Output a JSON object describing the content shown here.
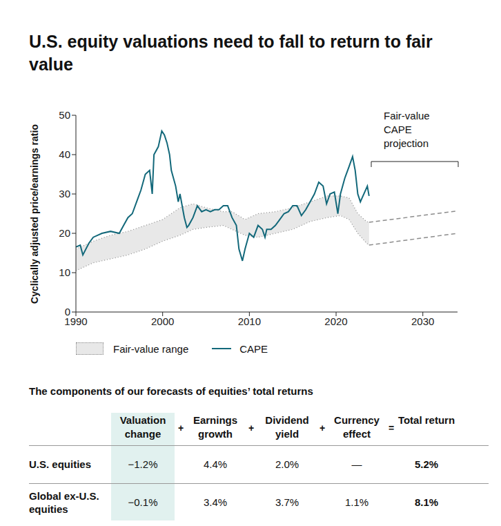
{
  "title": "U.S. equity valuations need to fall to return to fair value",
  "chart_data": {
    "type": "line",
    "y_label": "Cyclically adjusted price/earnings ratio",
    "xlim": [
      1990,
      2034
    ],
    "xticks": [
      1990,
      2000,
      2010,
      2020,
      2030
    ],
    "ylim": [
      0,
      50
    ],
    "yticks": [
      0,
      10,
      20,
      30,
      40,
      50
    ],
    "grid": false,
    "series": [
      {
        "name": "Fair-value range",
        "type": "range",
        "color": "#e8e8e8",
        "line_style": "dotted",
        "x": [
          1990,
          1992,
          1994,
          1996,
          1998,
          2000,
          2002,
          2003.5,
          2005,
          2007,
          2008,
          2009.5,
          2011,
          2013,
          2015,
          2017,
          2019,
          2020.5,
          2021.5,
          2022.5,
          2023.5,
          2023.8
        ],
        "lower": [
          10.5,
          12.5,
          13.5,
          14.5,
          16,
          18,
          19.5,
          21,
          21.5,
          22,
          21,
          19.5,
          19,
          20,
          21,
          23,
          24,
          24.5,
          23.5,
          20,
          17.5,
          17
        ],
        "upper": [
          16,
          18,
          19.5,
          20.5,
          22,
          23.5,
          26.5,
          27.5,
          26.5,
          25.5,
          25.5,
          23.5,
          25,
          25.5,
          26.5,
          28,
          29.5,
          29.5,
          29,
          25,
          23,
          22.8
        ]
      },
      {
        "name": "CAPE",
        "type": "line",
        "color": "#12687a",
        "x": [
          1990,
          1990.5,
          1990.8,
          1991.5,
          1992,
          1993,
          1994,
          1995,
          1995.5,
          1996,
          1996.5,
          1997,
          1997.5,
          1998,
          1998.5,
          1998.8,
          1999,
          1999.5,
          1999.9,
          2000.2,
          2000.5,
          2000.8,
          2001,
          2001.5,
          2001.8,
          2002,
          2002.5,
          2002.8,
          2003,
          2003.5,
          2004,
          2004.5,
          2005,
          2005.5,
          2006,
          2006.5,
          2007,
          2007.5,
          2008,
          2008.5,
          2008.8,
          2009.2,
          2009.5,
          2010,
          2010.5,
          2011,
          2011.5,
          2011.8,
          2012,
          2012.5,
          2013,
          2013.5,
          2014,
          2014.5,
          2015,
          2015.5,
          2016,
          2016.5,
          2017,
          2017.5,
          2018,
          2018.5,
          2018.9,
          2019.3,
          2019.8,
          2020.2,
          2020.5,
          2021,
          2021.5,
          2021.9,
          2022.2,
          2022.5,
          2022.8,
          2023,
          2023.4,
          2023.6,
          2023.8
        ],
        "values": [
          16.5,
          17,
          14.5,
          17.5,
          19,
          20,
          20.5,
          20,
          22,
          24,
          25,
          28,
          31,
          35,
          36,
          30,
          40,
          42,
          46,
          45,
          43,
          40,
          36,
          32,
          28,
          30,
          24,
          21.5,
          22,
          24,
          27,
          25.5,
          26,
          25.5,
          26,
          26,
          27,
          27,
          24,
          22,
          16,
          13,
          16,
          20,
          19,
          22,
          21,
          19,
          21,
          21,
          22,
          23.5,
          25,
          25.5,
          27,
          27,
          24.5,
          26,
          28,
          30,
          33,
          32,
          27.5,
          30,
          30.5,
          25,
          30,
          34,
          37,
          39.5,
          36,
          30,
          28,
          29,
          31,
          32,
          29.5
        ]
      }
    ],
    "projection": {
      "label": "Fair-value CAPE projection",
      "line_style": "dashed",
      "color": "#8c8c8c",
      "x": [
        2023.8,
        2034
      ],
      "lower": [
        17,
        20
      ],
      "upper": [
        22.8,
        25.7
      ]
    }
  },
  "table": {
    "title": "The components of our forecasts of equities’ total returns",
    "columns": [
      "Valuation change",
      "Earnings growth",
      "Dividend yield",
      "Currency effect",
      "Total return"
    ],
    "operators": [
      "+",
      "+",
      "+",
      "="
    ],
    "rows": [
      [
        "U.S. equities",
        "−1.2%",
        "4.4%",
        "2.0%",
        "—",
        "5.2%"
      ],
      [
        "Global ex-U.S. equities",
        "−0.1%",
        "3.4%",
        "3.7%",
        "1.1%",
        "8.1%"
      ]
    ]
  }
}
